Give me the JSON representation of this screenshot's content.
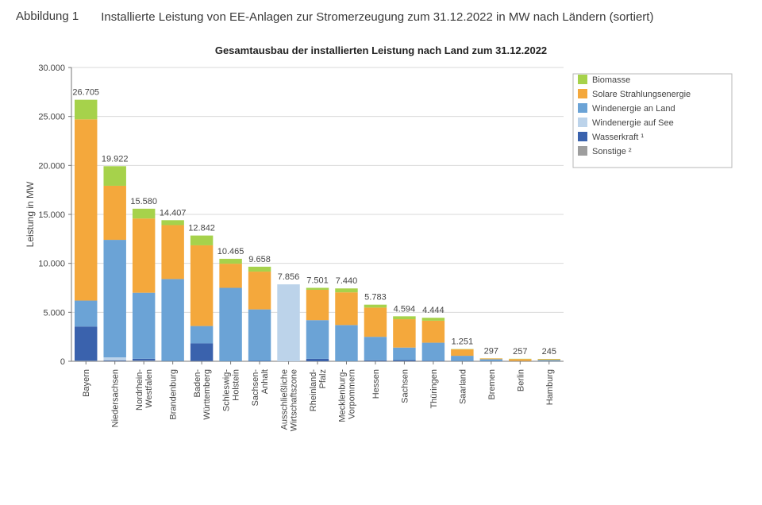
{
  "caption": {
    "label": "Abbildung 1",
    "text": "Installierte Leistung von EE-Anlagen zur Stromerzeugung zum 31.12.2022 in MW nach Ländern (sortiert)"
  },
  "chart": {
    "type": "stacked-bar",
    "title": "Gesamtausbau der installierten Leistung nach Land zum 31.12.2022",
    "y_label": "Leistung in MW",
    "ylim": [
      0,
      30000
    ],
    "ytick_step": 5000,
    "ytick_format": "de-thousand-dot",
    "background_color": "#ffffff",
    "grid_color": "#d9d9d9",
    "axis_color": "#777777",
    "bar_width_ratio": 0.78,
    "label_fontsize": 12,
    "tick_fontsize": 11,
    "title_fontsize": 13,
    "total_fontsize": 11,
    "series": [
      {
        "key": "biomasse",
        "label": "Biomasse",
        "color": "#a6d24b"
      },
      {
        "key": "solar",
        "label": "Solare Strahlungsenergie",
        "color": "#f4a83c"
      },
      {
        "key": "wind_land",
        "label": "Windenergie an Land",
        "color": "#6ba3d6"
      },
      {
        "key": "wind_see",
        "label": "Windenergie auf See",
        "color": "#bcd3ea"
      },
      {
        "key": "wasser",
        "label": "Wasserkraft ¹",
        "color": "#3a62ad"
      },
      {
        "key": "sonstige",
        "label": "Sonstige ²",
        "color": "#9e9e9e"
      }
    ],
    "stack_order_bottom_to_top": [
      "sonstige",
      "wasser",
      "wind_see",
      "wind_land",
      "solar",
      "biomasse"
    ],
    "categories": [
      {
        "name": "Bayern",
        "total_label": "26.705",
        "values": {
          "sonstige": 50,
          "wasser": 3500,
          "wind_see": 0,
          "wind_land": 2650,
          "solar": 18505,
          "biomasse": 2000
        }
      },
      {
        "name": "Niedersachsen",
        "total_label": "19.922",
        "values": {
          "sonstige": 30,
          "wasser": 70,
          "wind_see": 300,
          "wind_land": 12000,
          "solar": 5522,
          "biomasse": 2000
        }
      },
      {
        "name": "Nordrhein-Westfalen",
        "total_label": "15.580",
        "values": {
          "sonstige": 60,
          "wasser": 200,
          "wind_see": 0,
          "wind_land": 6740,
          "solar": 7580,
          "biomasse": 1000
        }
      },
      {
        "name": "Brandenburg",
        "total_label": "14.407",
        "values": {
          "sonstige": 20,
          "wasser": 10,
          "wind_see": 0,
          "wind_land": 8370,
          "solar": 5507,
          "biomasse": 500
        }
      },
      {
        "name": "Baden-Württemberg",
        "total_label": "12.842",
        "values": {
          "sonstige": 30,
          "wasser": 1800,
          "wind_see": 0,
          "wind_land": 1770,
          "solar": 8242,
          "biomasse": 1000
        }
      },
      {
        "name": "Schleswig-Holstein",
        "total_label": "10.465",
        "values": {
          "sonstige": 10,
          "wasser": 5,
          "wind_see": 0,
          "wind_land": 7485,
          "solar": 2465,
          "biomasse": 500
        }
      },
      {
        "name": "Sachsen-Anhalt",
        "total_label": "9.658",
        "values": {
          "sonstige": 10,
          "wasser": 30,
          "wind_see": 0,
          "wind_land": 5260,
          "solar": 3858,
          "biomasse": 500
        }
      },
      {
        "name": "Ausschließliche Wirtschaftszone",
        "total_label": "7.856",
        "values": {
          "sonstige": 0,
          "wasser": 0,
          "wind_see": 7856,
          "wind_land": 0,
          "solar": 0,
          "biomasse": 0
        }
      },
      {
        "name": "Rheinland-Pfalz",
        "total_label": "7.501",
        "values": {
          "sonstige": 10,
          "wasser": 240,
          "wind_see": 0,
          "wind_land": 3950,
          "solar": 3101,
          "biomasse": 200
        }
      },
      {
        "name": "Mecklenburg-Vorpommern",
        "total_label": "7.440",
        "values": {
          "sonstige": 10,
          "wasser": 5,
          "wind_see": 0,
          "wind_land": 3685,
          "solar": 3340,
          "biomasse": 400
        }
      },
      {
        "name": "Hessen",
        "total_label": "5.783",
        "values": {
          "sonstige": 20,
          "wasser": 80,
          "wind_see": 0,
          "wind_land": 2400,
          "solar": 2983,
          "biomasse": 300
        }
      },
      {
        "name": "Sachsen",
        "total_label": "4.594",
        "values": {
          "sonstige": 20,
          "wasser": 100,
          "wind_see": 0,
          "wind_land": 1280,
          "solar": 2894,
          "biomasse": 300
        }
      },
      {
        "name": "Thüringen",
        "total_label": "4.444",
        "values": {
          "sonstige": 10,
          "wasser": 40,
          "wind_see": 0,
          "wind_land": 1850,
          "solar": 2244,
          "biomasse": 300
        }
      },
      {
        "name": "Saarland",
        "total_label": "1.251",
        "values": {
          "sonstige": 10,
          "wasser": 10,
          "wind_see": 0,
          "wind_land": 540,
          "solar": 661,
          "biomasse": 30
        }
      },
      {
        "name": "Bremen",
        "total_label": "297",
        "values": {
          "sonstige": 5,
          "wasser": 5,
          "wind_see": 0,
          "wind_land": 200,
          "solar": 77,
          "biomasse": 10
        }
      },
      {
        "name": "Berlin",
        "total_label": "257",
        "values": {
          "sonstige": 5,
          "wasser": 0,
          "wind_see": 0,
          "wind_land": 20,
          "solar": 202,
          "biomasse": 30
        }
      },
      {
        "name": "Hamburg",
        "total_label": "245",
        "values": {
          "sonstige": 5,
          "wasser": 0,
          "wind_see": 0,
          "wind_land": 120,
          "solar": 90,
          "biomasse": 30
        }
      }
    ],
    "legend": {
      "position": "top-right",
      "border_color": "#b7b7b7",
      "background": "#ffffff"
    }
  }
}
